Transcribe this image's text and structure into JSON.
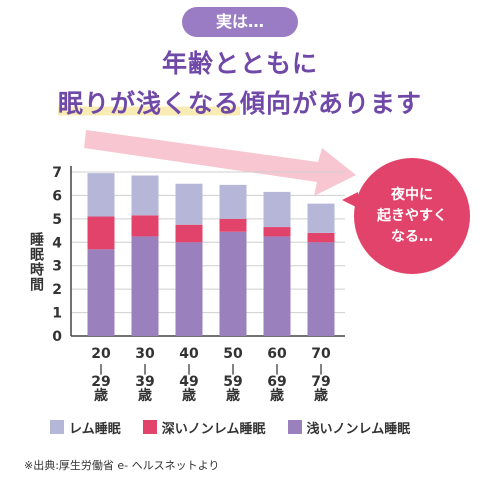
{
  "header": {
    "badge": "実は…",
    "line1": "年齢とともに",
    "line2_highlight": "眠りが浅くなる",
    "line2_rest": "傾向があります"
  },
  "callout": {
    "line1": "夜中に",
    "line2": "起きやすく",
    "line3": "なる…"
  },
  "colors": {
    "rem": "#b5b6d8",
    "deep": "#e2436a",
    "light": "#9a80bc",
    "accent": "#7048a8",
    "arrow": "#f7c6d0"
  },
  "chart_data": {
    "type": "bar",
    "stacked": true,
    "categories": [
      [
        "20",
        "|",
        "29",
        "歳"
      ],
      [
        "30",
        "|",
        "39",
        "歳"
      ],
      [
        "40",
        "|",
        "49",
        "歳"
      ],
      [
        "50",
        "|",
        "59",
        "歳"
      ],
      [
        "60",
        "|",
        "69",
        "歳"
      ],
      [
        "70",
        "|",
        "79",
        "歳"
      ]
    ],
    "series": [
      {
        "name": "浅いノンレム睡眠",
        "color": "#9a80bc",
        "values": [
          3.7,
          4.25,
          4.0,
          4.45,
          4.25,
          4.0
        ]
      },
      {
        "name": "深いノンレム睡眠",
        "color": "#e2436a",
        "values": [
          1.4,
          0.9,
          0.75,
          0.55,
          0.4,
          0.4
        ]
      },
      {
        "name": "レム睡眠",
        "color": "#b5b6d8",
        "values": [
          1.85,
          1.7,
          1.75,
          1.45,
          1.5,
          1.25
        ]
      }
    ],
    "ylabel": "睡眠時間",
    "ylim": [
      0,
      7
    ],
    "yticks": [
      0,
      1,
      2,
      3,
      4,
      5,
      6,
      7
    ],
    "grid": true,
    "legend_order": [
      "レム睡眠",
      "深いノンレム睡眠",
      "浅いノンレム睡眠"
    ],
    "legend_position": "bottom"
  },
  "source": "※出典:厚生労働省 e- ヘルスネットより"
}
